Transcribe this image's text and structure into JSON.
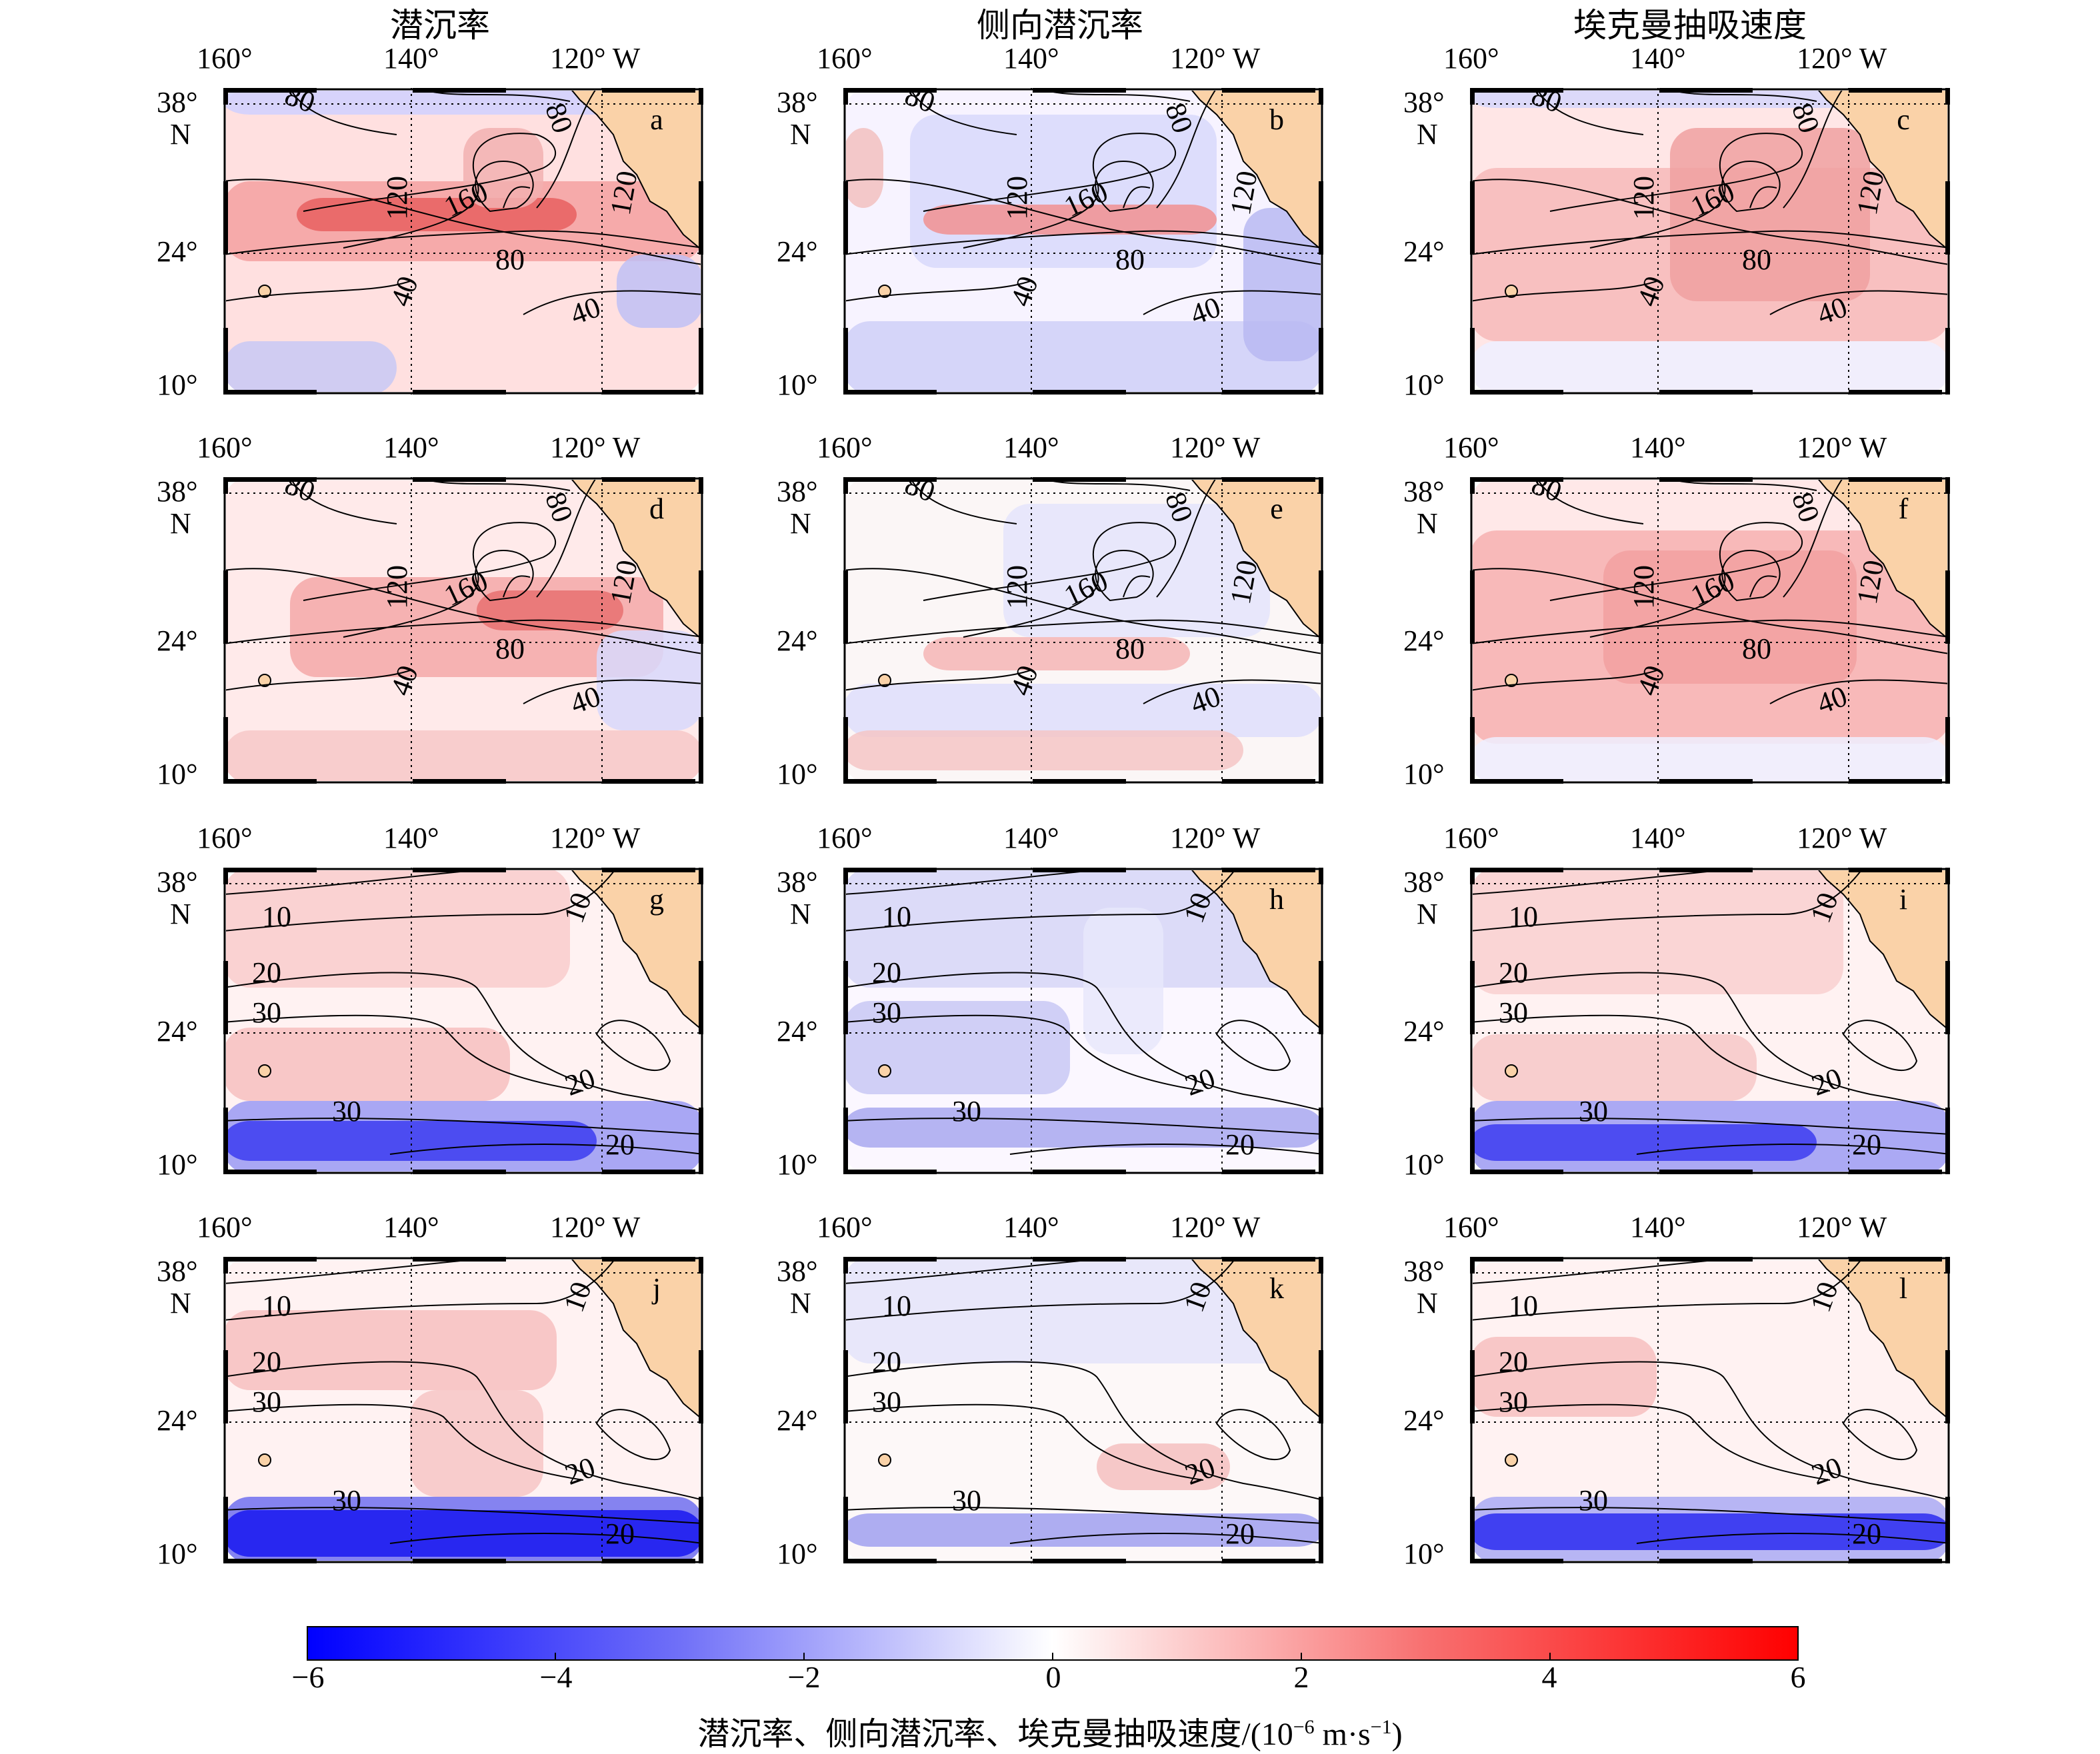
{
  "columns": [
    {
      "title": "潜沉率"
    },
    {
      "title": "侧向潜沉率"
    },
    {
      "title": "埃克曼抽吸速度"
    }
  ],
  "axes": {
    "lon_labels": [
      "160°",
      "140°",
      "120° W"
    ],
    "lat_labels": [
      "38°",
      "N",
      "24°",
      "10°"
    ]
  },
  "panels": [
    {
      "letter": "a",
      "kind": "rate",
      "contours": [
        "80",
        "80",
        "120",
        "160",
        "120",
        "80",
        "40",
        "40"
      ]
    },
    {
      "letter": "b",
      "kind": "rate",
      "contours": [
        "80",
        "80",
        "120",
        "160",
        "120",
        "80",
        "40",
        "40"
      ]
    },
    {
      "letter": "c",
      "kind": "rate",
      "contours": [
        "80",
        "80",
        "120",
        "160",
        "120",
        "80",
        "40",
        "40"
      ]
    },
    {
      "letter": "d",
      "kind": "rate",
      "contours": [
        "80",
        "80",
        "120",
        "160",
        "120",
        "80",
        "40",
        "40"
      ]
    },
    {
      "letter": "e",
      "kind": "rate",
      "contours": [
        "80",
        "80",
        "120",
        "160",
        "120",
        "80",
        "40",
        "40"
      ]
    },
    {
      "letter": "f",
      "kind": "rate",
      "contours": [
        "80",
        "80",
        "120",
        "160",
        "120",
        "80",
        "40",
        "40"
      ]
    },
    {
      "letter": "g",
      "kind": "depth",
      "contours": [
        "10",
        "10",
        "20",
        "30",
        "30",
        "20",
        "20"
      ]
    },
    {
      "letter": "h",
      "kind": "depth",
      "contours": [
        "10",
        "10",
        "20",
        "30",
        "30",
        "20",
        "20"
      ]
    },
    {
      "letter": "i",
      "kind": "depth",
      "contours": [
        "10",
        "10",
        "20",
        "30",
        "30",
        "20",
        "20"
      ]
    },
    {
      "letter": "j",
      "kind": "depth",
      "contours": [
        "10",
        "10",
        "20",
        "30",
        "30",
        "20",
        "20"
      ]
    },
    {
      "letter": "k",
      "kind": "depth",
      "contours": [
        "10",
        "10",
        "20",
        "30",
        "30",
        "20",
        "20"
      ]
    },
    {
      "letter": "l",
      "kind": "depth",
      "contours": [
        "10",
        "10",
        "20",
        "30",
        "30",
        "20",
        "20"
      ]
    }
  ],
  "colorbar": {
    "ticks": [
      "−6",
      "−4",
      "−2",
      "0",
      "2",
      "4",
      "6"
    ],
    "range": [
      -6,
      6
    ],
    "low_color": "#0000ff",
    "mid_color": "#ffffff",
    "high_color": "#ff0000",
    "title_main": "潜沉率、侧向潜沉率、埃克曼抽吸速度/(10",
    "title_exp": "−6",
    "title_unit": " m·s",
    "title_exp2": "−1",
    "title_end": ")"
  },
  "land_color": "#fad2a8"
}
